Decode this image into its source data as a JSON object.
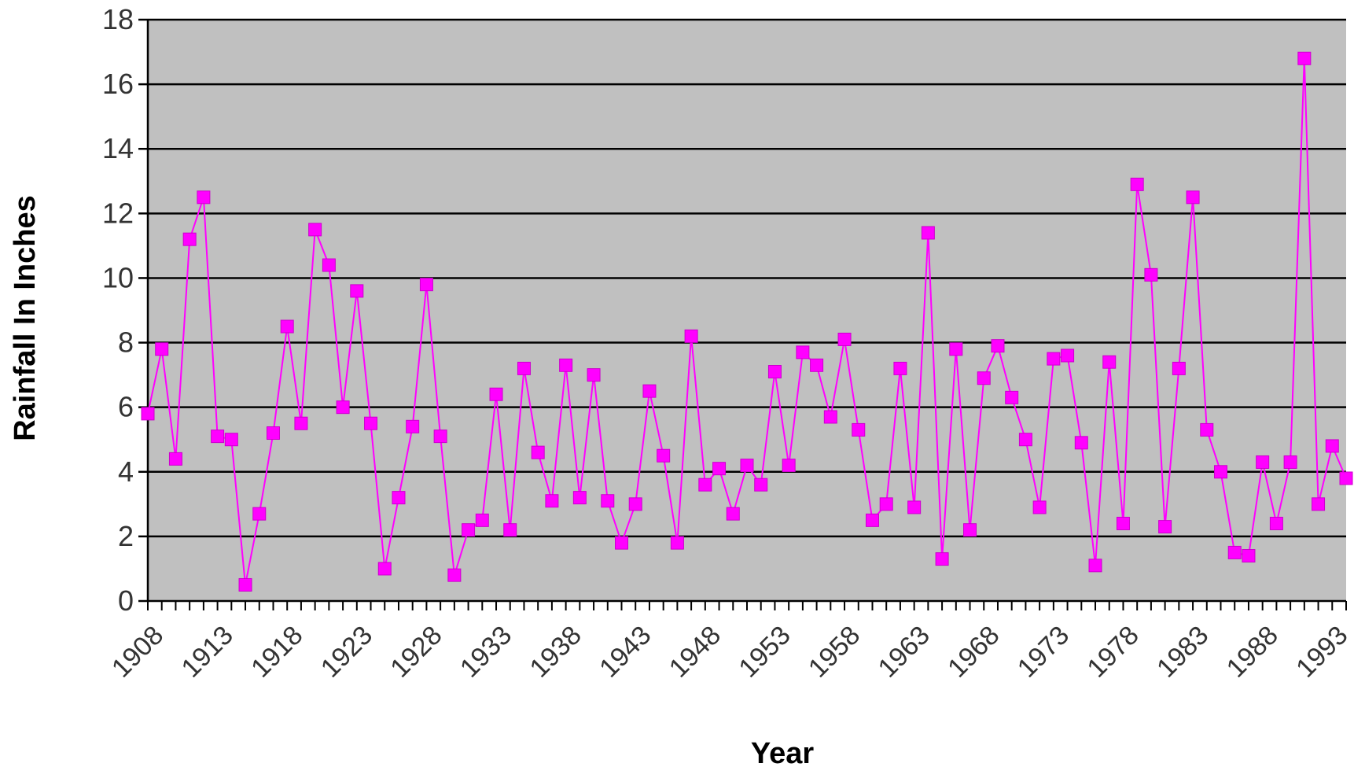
{
  "chart_data": {
    "type": "line",
    "title": "",
    "xlabel": "Year",
    "ylabel": "Rainfall In Inches",
    "xlim": [
      1908,
      1994
    ],
    "ylim": [
      0,
      18
    ],
    "y_ticks": [
      0,
      2,
      4,
      6,
      8,
      10,
      12,
      14,
      16,
      18
    ],
    "x_tick_labels": [
      "1908",
      "1913",
      "1918",
      "1923",
      "1928",
      "1933",
      "1938",
      "1943",
      "1948",
      "1953",
      "1958",
      "1963",
      "1968",
      "1973",
      "1978",
      "1983",
      "1988",
      "1993"
    ],
    "grid": true,
    "legend": "none",
    "colors": {
      "plot_background": "#c0c0c0",
      "series": "#ff00ff",
      "grid": "#000000"
    },
    "series": [
      {
        "x": [
          1908,
          1909,
          1910,
          1911,
          1912,
          1913,
          1914,
          1915,
          1916,
          1917,
          1918,
          1919,
          1920,
          1921,
          1922,
          1923,
          1924,
          1925,
          1926,
          1927,
          1928,
          1929,
          1930,
          1931,
          1932,
          1933,
          1934,
          1935,
          1936,
          1937,
          1938,
          1939,
          1940,
          1941,
          1942,
          1943,
          1944,
          1945,
          1946,
          1947,
          1948,
          1949,
          1950,
          1951,
          1952,
          1953,
          1954,
          1955,
          1956,
          1957,
          1958,
          1959,
          1960,
          1961,
          1962,
          1963,
          1964,
          1965,
          1966,
          1967,
          1968,
          1969,
          1970,
          1971,
          1972,
          1973,
          1974,
          1975,
          1976,
          1977,
          1978,
          1979,
          1980,
          1981,
          1982,
          1983,
          1984,
          1985,
          1986,
          1987,
          1988,
          1989,
          1990,
          1991,
          1992,
          1993,
          1994
        ],
        "values": [
          5.8,
          7.8,
          4.4,
          11.2,
          12.5,
          5.1,
          5.0,
          0.5,
          2.7,
          5.2,
          8.5,
          5.5,
          11.5,
          10.4,
          6.0,
          9.6,
          5.5,
          1.0,
          3.2,
          5.4,
          9.8,
          5.1,
          0.8,
          2.2,
          2.5,
          6.4,
          2.2,
          7.2,
          4.6,
          3.1,
          7.3,
          3.2,
          7.0,
          3.1,
          1.8,
          3.0,
          6.5,
          4.5,
          1.8,
          8.2,
          3.6,
          4.1,
          2.7,
          4.2,
          3.6,
          7.1,
          4.2,
          7.7,
          7.3,
          5.7,
          8.1,
          5.3,
          2.5,
          3.0,
          7.2,
          2.9,
          11.4,
          1.3,
          7.8,
          2.2,
          6.9,
          7.9,
          6.3,
          5.0,
          2.9,
          7.5,
          7.6,
          4.9,
          1.1,
          7.4,
          2.4,
          12.9,
          10.1,
          2.3,
          7.2,
          12.5,
          5.3,
          4.0,
          1.5,
          1.4,
          4.3,
          2.4,
          4.3,
          16.8,
          3.0,
          4.8,
          3.8
        ]
      }
    ]
  }
}
